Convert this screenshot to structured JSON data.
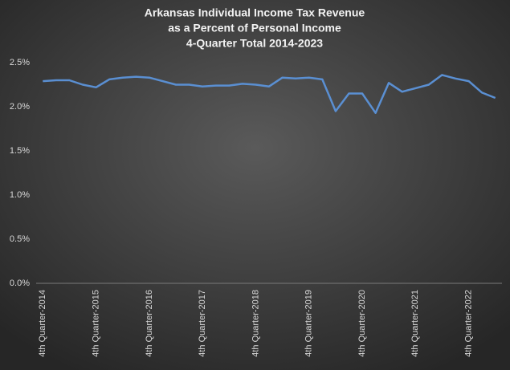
{
  "chart_data": {
    "type": "line",
    "title": [
      "Arkansas Individual Income Tax Revenue",
      "as a Percent of Personal Income",
      "4-Quarter Total 2014-2023"
    ],
    "categories": [
      "4th Quarter-2014",
      null,
      null,
      null,
      "4th Quarter-2015",
      null,
      null,
      null,
      "4th Quarter-2016",
      null,
      null,
      null,
      "4th Quarter-2017",
      null,
      null,
      null,
      "4th Quarter-2018",
      null,
      null,
      null,
      "4th Quarter-2019",
      null,
      null,
      null,
      "4th Quarter-2020",
      null,
      null,
      null,
      "4th Quarter-2021",
      null,
      null,
      null,
      "4th Quarter-2022",
      null,
      null
    ],
    "values": [
      2.29,
      2.3,
      2.3,
      2.25,
      2.22,
      2.31,
      2.33,
      2.34,
      2.33,
      2.29,
      2.25,
      2.25,
      2.23,
      2.24,
      2.24,
      2.26,
      2.25,
      2.23,
      2.33,
      2.32,
      2.33,
      2.31,
      1.95,
      2.15,
      2.15,
      1.93,
      2.27,
      2.17,
      2.21,
      2.25,
      2.36,
      2.32,
      2.29,
      2.16,
      2.1
    ],
    "color": "#5a8fd2",
    "ylim": [
      0,
      2.5
    ],
    "yticks": [
      {
        "value": 0,
        "label": "0.0%"
      },
      {
        "value": 0.5,
        "label": "0.5%"
      },
      {
        "value": 1,
        "label": "1.0%"
      },
      {
        "value": 1.5,
        "label": "1.5%"
      },
      {
        "value": 2,
        "label": "2.0%"
      },
      {
        "value": 2.5,
        "label": "2.5%"
      }
    ],
    "grid": false
  }
}
